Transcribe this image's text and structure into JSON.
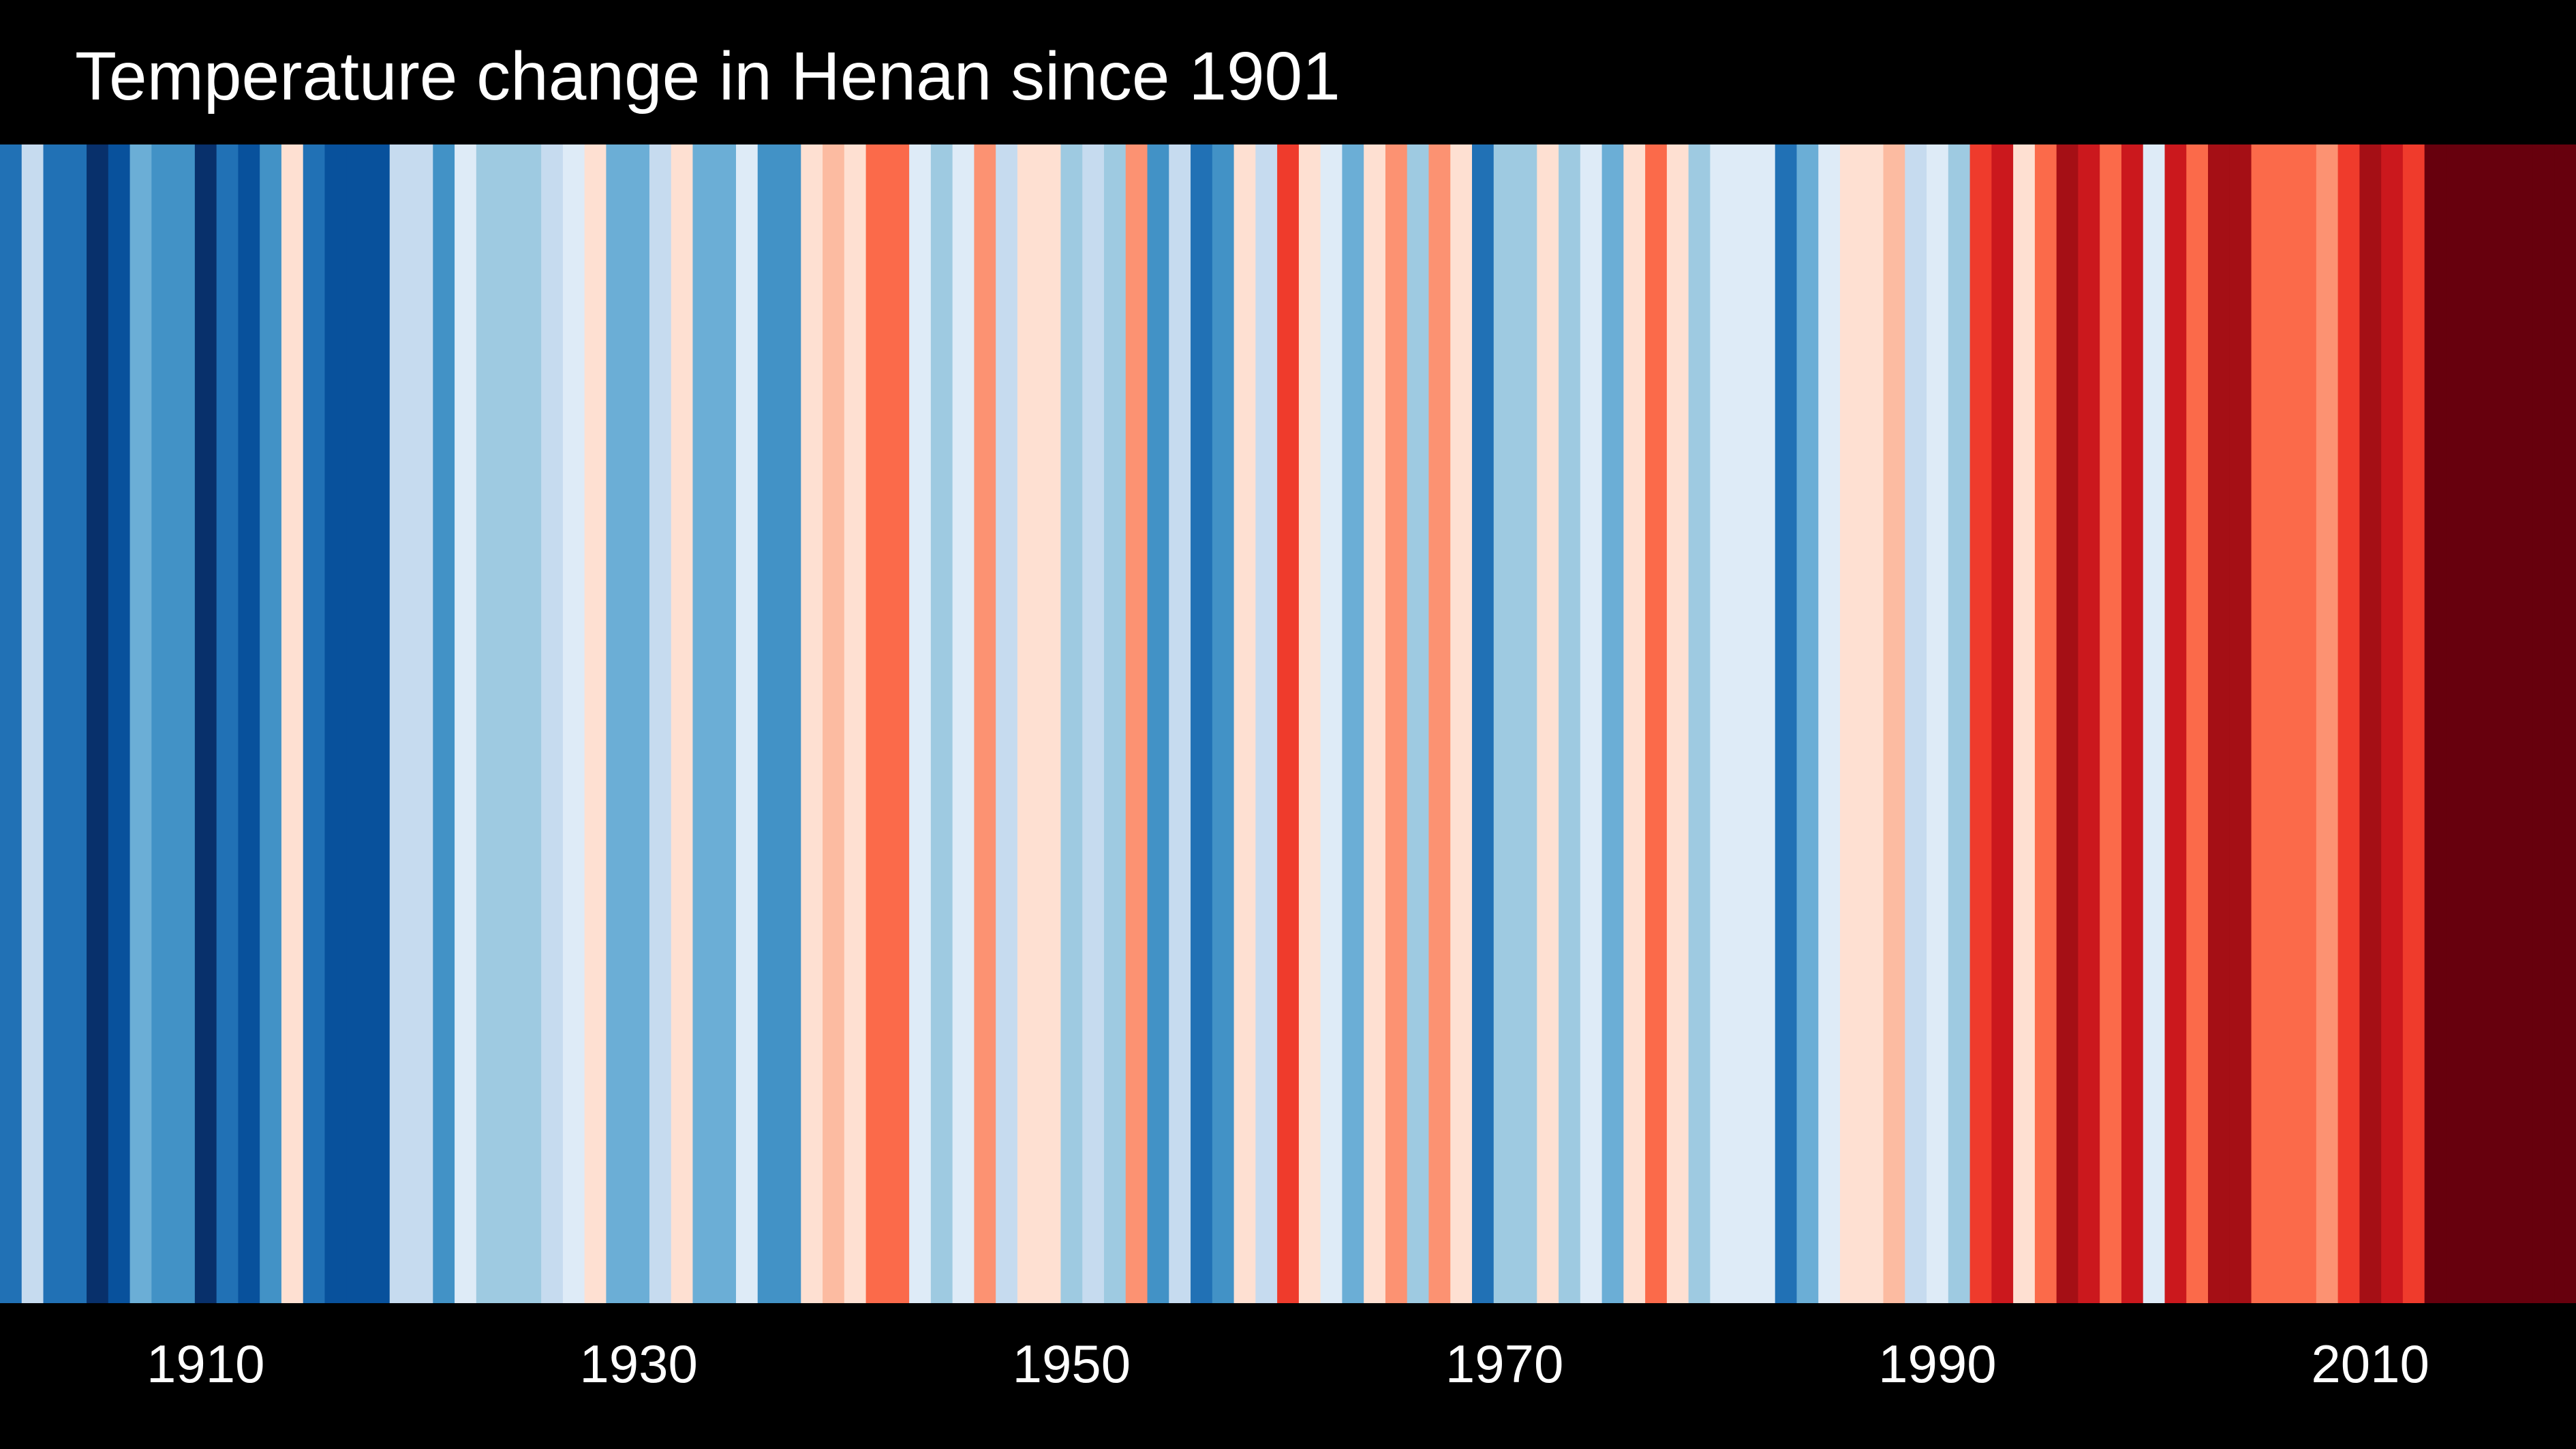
{
  "chart_data": {
    "type": "heatmap",
    "title": "Temperature change in Henan since 1901",
    "x_range": [
      1901,
      2019
    ],
    "x_ticks": [
      1910,
      1930,
      1950,
      1970,
      1990,
      2010
    ],
    "stripes": [
      {
        "year": 1901,
        "color": "#2171b5"
      },
      {
        "year": 1902,
        "color": "#c6dbef"
      },
      {
        "year": 1903,
        "color": "#2171b5"
      },
      {
        "year": 1904,
        "color": "#2171b5"
      },
      {
        "year": 1905,
        "color": "#08306b"
      },
      {
        "year": 1906,
        "color": "#08519c"
      },
      {
        "year": 1907,
        "color": "#6baed6"
      },
      {
        "year": 1908,
        "color": "#4292c6"
      },
      {
        "year": 1909,
        "color": "#4292c6"
      },
      {
        "year": 1910,
        "color": "#08306b"
      },
      {
        "year": 1911,
        "color": "#2171b5"
      },
      {
        "year": 1912,
        "color": "#08519c"
      },
      {
        "year": 1913,
        "color": "#4292c6"
      },
      {
        "year": 1914,
        "color": "#fee0d2"
      },
      {
        "year": 1915,
        "color": "#2171b5"
      },
      {
        "year": 1916,
        "color": "#08519c"
      },
      {
        "year": 1917,
        "color": "#08519c"
      },
      {
        "year": 1918,
        "color": "#08519c"
      },
      {
        "year": 1919,
        "color": "#c6dbef"
      },
      {
        "year": 1920,
        "color": "#c6dbef"
      },
      {
        "year": 1921,
        "color": "#4292c6"
      },
      {
        "year": 1922,
        "color": "#deebf7"
      },
      {
        "year": 1923,
        "color": "#9ecae1"
      },
      {
        "year": 1924,
        "color": "#9ecae1"
      },
      {
        "year": 1925,
        "color": "#9ecae1"
      },
      {
        "year": 1926,
        "color": "#c6dbef"
      },
      {
        "year": 1927,
        "color": "#deebf7"
      },
      {
        "year": 1928,
        "color": "#fee0d2"
      },
      {
        "year": 1929,
        "color": "#6baed6"
      },
      {
        "year": 1930,
        "color": "#6baed6"
      },
      {
        "year": 1931,
        "color": "#c6dbef"
      },
      {
        "year": 1932,
        "color": "#fee0d2"
      },
      {
        "year": 1933,
        "color": "#6baed6"
      },
      {
        "year": 1934,
        "color": "#6baed6"
      },
      {
        "year": 1935,
        "color": "#deebf7"
      },
      {
        "year": 1936,
        "color": "#4292c6"
      },
      {
        "year": 1937,
        "color": "#4292c6"
      },
      {
        "year": 1938,
        "color": "#fee0d2"
      },
      {
        "year": 1939,
        "color": "#fcbba1"
      },
      {
        "year": 1940,
        "color": "#fee0d2"
      },
      {
        "year": 1941,
        "color": "#fb6a4a"
      },
      {
        "year": 1942,
        "color": "#fb6a4a"
      },
      {
        "year": 1943,
        "color": "#deebf7"
      },
      {
        "year": 1944,
        "color": "#9ecae1"
      },
      {
        "year": 1945,
        "color": "#deebf7"
      },
      {
        "year": 1946,
        "color": "#fc9272"
      },
      {
        "year": 1947,
        "color": "#c6dbef"
      },
      {
        "year": 1948,
        "color": "#fee0d2"
      },
      {
        "year": 1949,
        "color": "#fee0d2"
      },
      {
        "year": 1950,
        "color": "#9ecae1"
      },
      {
        "year": 1951,
        "color": "#c6dbef"
      },
      {
        "year": 1952,
        "color": "#9ecae1"
      },
      {
        "year": 1953,
        "color": "#fc9272"
      },
      {
        "year": 1954,
        "color": "#4292c6"
      },
      {
        "year": 1955,
        "color": "#c6dbef"
      },
      {
        "year": 1956,
        "color": "#2171b5"
      },
      {
        "year": 1957,
        "color": "#4292c6"
      },
      {
        "year": 1958,
        "color": "#fee0d2"
      },
      {
        "year": 1959,
        "color": "#c6dbef"
      },
      {
        "year": 1960,
        "color": "#ef3b2c"
      },
      {
        "year": 1961,
        "color": "#fee0d2"
      },
      {
        "year": 1962,
        "color": "#deebf7"
      },
      {
        "year": 1963,
        "color": "#6baed6"
      },
      {
        "year": 1964,
        "color": "#fee0d2"
      },
      {
        "year": 1965,
        "color": "#fc9272"
      },
      {
        "year": 1966,
        "color": "#9ecae1"
      },
      {
        "year": 1967,
        "color": "#fc9272"
      },
      {
        "year": 1968,
        "color": "#fee0d2"
      },
      {
        "year": 1969,
        "color": "#2171b5"
      },
      {
        "year": 1970,
        "color": "#9ecae1"
      },
      {
        "year": 1971,
        "color": "#9ecae1"
      },
      {
        "year": 1972,
        "color": "#fee0d2"
      },
      {
        "year": 1973,
        "color": "#9ecae1"
      },
      {
        "year": 1974,
        "color": "#deebf7"
      },
      {
        "year": 1975,
        "color": "#6baed6"
      },
      {
        "year": 1976,
        "color": "#fee0d2"
      },
      {
        "year": 1977,
        "color": "#fb6a4a"
      },
      {
        "year": 1978,
        "color": "#fee0d2"
      },
      {
        "year": 1979,
        "color": "#9ecae1"
      },
      {
        "year": 1980,
        "color": "#deebf7"
      },
      {
        "year": 1981,
        "color": "#deebf7"
      },
      {
        "year": 1982,
        "color": "#deebf7"
      },
      {
        "year": 1983,
        "color": "#2171b5"
      },
      {
        "year": 1984,
        "color": "#6baed6"
      },
      {
        "year": 1985,
        "color": "#deebf7"
      },
      {
        "year": 1986,
        "color": "#fee0d2"
      },
      {
        "year": 1987,
        "color": "#fee0d2"
      },
      {
        "year": 1988,
        "color": "#fcbba1"
      },
      {
        "year": 1989,
        "color": "#c6dbef"
      },
      {
        "year": 1990,
        "color": "#deebf7"
      },
      {
        "year": 1991,
        "color": "#9ecae1"
      },
      {
        "year": 1992,
        "color": "#ef3b2c"
      },
      {
        "year": 1993,
        "color": "#cb181d"
      },
      {
        "year": 1994,
        "color": "#fee0d2"
      },
      {
        "year": 1995,
        "color": "#fb6a4a"
      },
      {
        "year": 1996,
        "color": "#a50f15"
      },
      {
        "year": 1997,
        "color": "#cb181d"
      },
      {
        "year": 1998,
        "color": "#fb6a4a"
      },
      {
        "year": 1999,
        "color": "#cb181d"
      },
      {
        "year": 2000,
        "color": "#deebf7"
      },
      {
        "year": 2001,
        "color": "#cb181d"
      },
      {
        "year": 2002,
        "color": "#fb6a4a"
      },
      {
        "year": 2003,
        "color": "#a50f15"
      },
      {
        "year": 2004,
        "color": "#a50f15"
      },
      {
        "year": 2005,
        "color": "#fb6a4a"
      },
      {
        "year": 2006,
        "color": "#fb6a4a"
      },
      {
        "year": 2007,
        "color": "#fb6a4a"
      },
      {
        "year": 2008,
        "color": "#fc9272"
      },
      {
        "year": 2009,
        "color": "#ef3b2c"
      },
      {
        "year": 2010,
        "color": "#a50f15"
      },
      {
        "year": 2011,
        "color": "#cb181d"
      },
      {
        "year": 2012,
        "color": "#ef3b2c"
      },
      {
        "year": 2013,
        "color": "#67000d"
      },
      {
        "year": 2014,
        "color": "#67000d"
      },
      {
        "year": 2015,
        "color": "#67000d"
      },
      {
        "year": 2016,
        "color": "#67000d"
      },
      {
        "year": 2017,
        "color": "#67000d"
      },
      {
        "year": 2018,
        "color": "#67000d"
      },
      {
        "year": 2019,
        "color": "#67000d"
      }
    ]
  }
}
